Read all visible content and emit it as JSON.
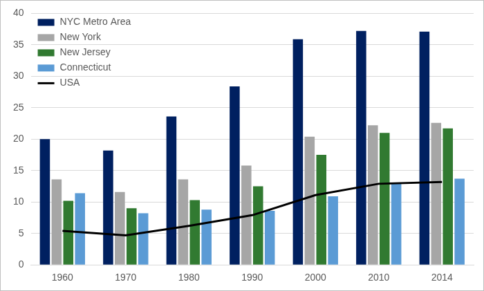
{
  "chart_data": {
    "type": "bar",
    "categories": [
      "1960",
      "1970",
      "1980",
      "1990",
      "2000",
      "2010",
      "2014"
    ],
    "series": [
      {
        "name": "NYC Metro Area",
        "color": "#002060",
        "values": [
          20.0,
          18.2,
          23.6,
          28.4,
          35.9,
          37.2,
          37.1
        ]
      },
      {
        "name": "New York",
        "color": "#a6a6a6",
        "values": [
          13.6,
          11.6,
          13.6,
          15.8,
          20.4,
          22.2,
          22.6
        ]
      },
      {
        "name": "New Jersey",
        "color": "#317a31",
        "values": [
          10.2,
          9.0,
          10.3,
          12.5,
          17.5,
          21.0,
          21.7
        ]
      },
      {
        "name": "Connecticut",
        "color": "#5b9bd5",
        "values": [
          11.4,
          8.2,
          8.8,
          8.6,
          10.9,
          12.9,
          13.7
        ]
      },
      {
        "name": "USA",
        "color": "#000000",
        "type": "line",
        "marker": "none",
        "values": [
          5.4,
          4.7,
          6.2,
          7.9,
          11.1,
          12.9,
          13.2
        ]
      }
    ],
    "ylim": [
      0,
      40
    ],
    "yticks": [
      0,
      5,
      10,
      15,
      20,
      25,
      30,
      35,
      40
    ],
    "grid": true,
    "legend": "upper left"
  }
}
